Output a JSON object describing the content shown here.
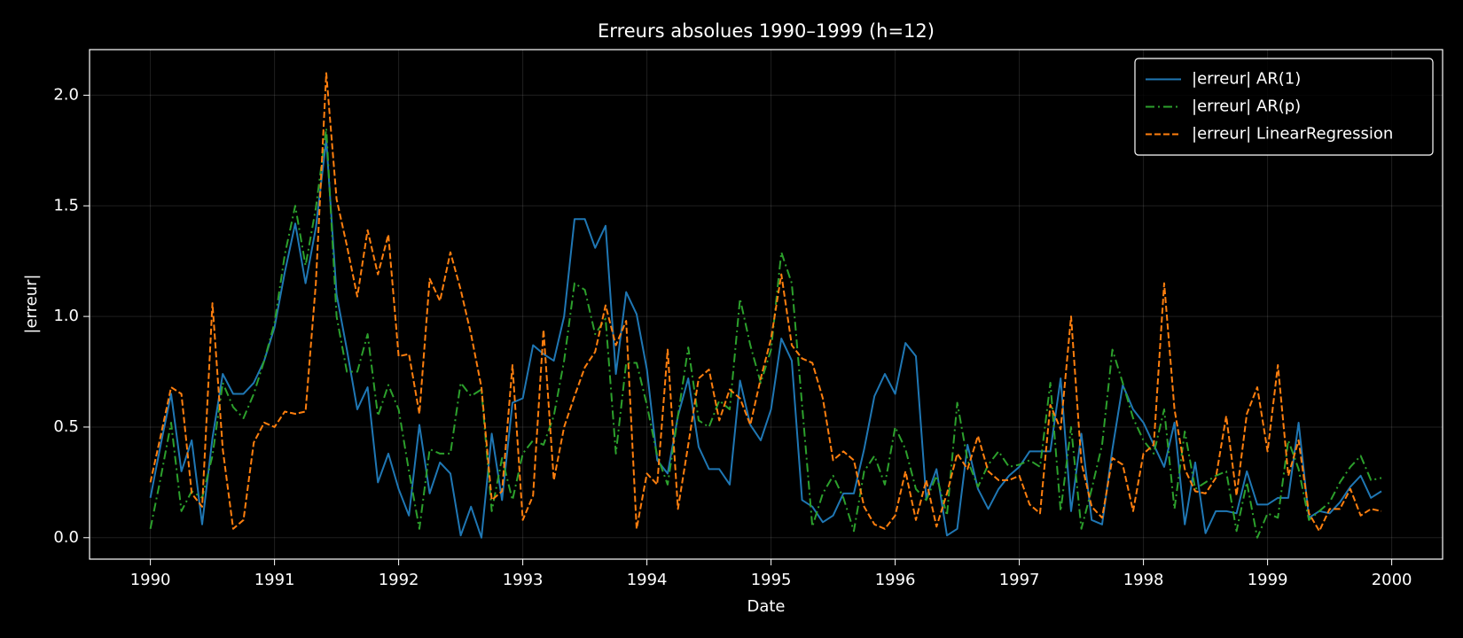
{
  "chart_data": {
    "type": "line",
    "title": "Erreurs absolues 1990–1999 (h=12)",
    "x_label": "Date",
    "y_label": "|erreur|",
    "x": [
      1990,
      1990.083,
      1990.167,
      1990.25,
      1990.333,
      1990.417,
      1990.5,
      1990.583,
      1990.667,
      1990.75,
      1990.833,
      1990.917,
      1991,
      1991.083,
      1991.167,
      1991.25,
      1991.333,
      1991.417,
      1991.5,
      1991.583,
      1991.667,
      1991.75,
      1991.833,
      1991.917,
      1992,
      1992.083,
      1992.167,
      1992.25,
      1992.333,
      1992.417,
      1992.5,
      1992.583,
      1992.667,
      1992.75,
      1992.833,
      1992.917,
      1993,
      1993.083,
      1993.167,
      1993.25,
      1993.333,
      1993.417,
      1993.5,
      1993.583,
      1993.667,
      1993.75,
      1993.833,
      1993.917,
      1994,
      1994.083,
      1994.167,
      1994.25,
      1994.333,
      1994.417,
      1994.5,
      1994.583,
      1994.667,
      1994.75,
      1994.833,
      1994.917,
      1995,
      1995.083,
      1995.167,
      1995.25,
      1995.333,
      1995.417,
      1995.5,
      1995.583,
      1995.667,
      1995.75,
      1995.833,
      1995.917,
      1996,
      1996.083,
      1996.167,
      1996.25,
      1996.333,
      1996.417,
      1996.5,
      1996.583,
      1996.667,
      1996.75,
      1996.833,
      1996.917,
      1997,
      1997.083,
      1997.167,
      1997.25,
      1997.333,
      1997.417,
      1997.5,
      1997.583,
      1997.667,
      1997.75,
      1997.833,
      1997.917,
      1998,
      1998.083,
      1998.167,
      1998.25,
      1998.333,
      1998.417,
      1998.5,
      1998.583,
      1998.667,
      1998.75,
      1998.833,
      1998.917,
      1999,
      1999.083,
      1999.167,
      1999.25,
      1999.333,
      1999.417,
      1999.5,
      1999.583,
      1999.667,
      1999.75,
      1999.833,
      1999.917
    ],
    "series": [
      {
        "name": "|erreur| AR(1)",
        "color": "#1f77b4",
        "dash": "solid",
        "values": [
          0.18,
          0.42,
          0.65,
          0.3,
          0.44,
          0.06,
          0.45,
          0.74,
          0.65,
          0.65,
          0.7,
          0.8,
          0.95,
          1.2,
          1.42,
          1.15,
          1.4,
          1.8,
          1.1,
          0.85,
          0.58,
          0.68,
          0.25,
          0.38,
          0.22,
          0.1,
          0.51,
          0.2,
          0.34,
          0.29,
          0.01,
          0.14,
          0.0,
          0.47,
          0.17,
          0.61,
          0.63,
          0.87,
          0.83,
          0.8,
          1.0,
          1.44,
          1.44,
          1.31,
          1.41,
          0.74,
          1.11,
          1.01,
          0.76,
          0.35,
          0.29,
          0.55,
          0.72,
          0.41,
          0.31,
          0.31,
          0.24,
          0.71,
          0.51,
          0.44,
          0.58,
          0.9,
          0.8,
          0.17,
          0.14,
          0.07,
          0.1,
          0.2,
          0.2,
          0.4,
          0.64,
          0.74,
          0.65,
          0.88,
          0.82,
          0.18,
          0.31,
          0.01,
          0.04,
          0.42,
          0.22,
          0.13,
          0.22,
          0.28,
          0.32,
          0.39,
          0.39,
          0.39,
          0.72,
          0.12,
          0.47,
          0.08,
          0.06,
          0.4,
          0.69,
          0.58,
          0.52,
          0.42,
          0.32,
          0.52,
          0.06,
          0.34,
          0.02,
          0.12,
          0.12,
          0.11,
          0.3,
          0.15,
          0.15,
          0.18,
          0.18,
          0.52,
          0.09,
          0.12,
          0.11,
          0.16,
          0.23,
          0.28,
          0.18,
          0.21
        ]
      },
      {
        "name": "|erreur| AR(p)",
        "color": "#2ca02c",
        "dash": "dashdot",
        "values": [
          0.04,
          0.27,
          0.52,
          0.12,
          0.21,
          0.18,
          0.37,
          0.7,
          0.59,
          0.54,
          0.65,
          0.8,
          0.97,
          1.28,
          1.5,
          1.23,
          1.49,
          1.85,
          1.0,
          0.75,
          0.75,
          0.92,
          0.55,
          0.69,
          0.58,
          0.3,
          0.04,
          0.4,
          0.38,
          0.38,
          0.7,
          0.64,
          0.67,
          0.12,
          0.36,
          0.17,
          0.38,
          0.44,
          0.42,
          0.55,
          0.8,
          1.15,
          1.12,
          0.92,
          0.99,
          0.38,
          0.79,
          0.79,
          0.6,
          0.37,
          0.24,
          0.55,
          0.86,
          0.53,
          0.5,
          0.62,
          0.58,
          1.08,
          0.87,
          0.7,
          0.85,
          1.29,
          1.15,
          0.6,
          0.05,
          0.2,
          0.28,
          0.18,
          0.03,
          0.3,
          0.37,
          0.24,
          0.5,
          0.4,
          0.22,
          0.17,
          0.28,
          0.1,
          0.61,
          0.35,
          0.23,
          0.33,
          0.39,
          0.32,
          0.33,
          0.35,
          0.32,
          0.7,
          0.12,
          0.5,
          0.04,
          0.22,
          0.42,
          0.85,
          0.7,
          0.54,
          0.44,
          0.38,
          0.58,
          0.13,
          0.48,
          0.22,
          0.25,
          0.28,
          0.3,
          0.03,
          0.25,
          0.0,
          0.11,
          0.09,
          0.44,
          0.31,
          0.08,
          0.12,
          0.16,
          0.25,
          0.32,
          0.37,
          0.26,
          0.27
        ]
      },
      {
        "name": "|erreur| LinearRegression",
        "color": "#ff7f0e",
        "dash": "dashed",
        "values": [
          0.25,
          0.46,
          0.68,
          0.65,
          0.2,
          0.14,
          1.06,
          0.4,
          0.04,
          0.08,
          0.43,
          0.52,
          0.5,
          0.57,
          0.56,
          0.57,
          1.15,
          2.1,
          1.53,
          1.32,
          1.09,
          1.39,
          1.19,
          1.37,
          0.82,
          0.83,
          0.56,
          1.17,
          1.07,
          1.29,
          1.12,
          0.92,
          0.68,
          0.17,
          0.21,
          0.78,
          0.08,
          0.19,
          0.94,
          0.26,
          0.5,
          0.64,
          0.77,
          0.84,
          1.05,
          0.87,
          0.98,
          0.04,
          0.29,
          0.24,
          0.85,
          0.13,
          0.42,
          0.72,
          0.76,
          0.53,
          0.67,
          0.63,
          0.51,
          0.72,
          0.9,
          1.19,
          0.87,
          0.81,
          0.79,
          0.63,
          0.35,
          0.39,
          0.35,
          0.14,
          0.06,
          0.04,
          0.1,
          0.3,
          0.08,
          0.26,
          0.05,
          0.2,
          0.38,
          0.31,
          0.46,
          0.3,
          0.26,
          0.26,
          0.28,
          0.15,
          0.11,
          0.6,
          0.49,
          1.0,
          0.34,
          0.14,
          0.09,
          0.36,
          0.33,
          0.12,
          0.38,
          0.42,
          1.15,
          0.58,
          0.31,
          0.21,
          0.2,
          0.27,
          0.55,
          0.19,
          0.56,
          0.68,
          0.39,
          0.78,
          0.28,
          0.44,
          0.11,
          0.03,
          0.13,
          0.13,
          0.22,
          0.1,
          0.13,
          0.12
        ]
      }
    ],
    "xlim": [
      1989.51,
      2000.41
    ],
    "xticks": [
      1990,
      1991,
      1992,
      1993,
      1994,
      1995,
      1996,
      1997,
      1998,
      1999,
      2000
    ],
    "ylim": [
      -0.097,
      2.206
    ],
    "yticks": [
      {
        "value": 0,
        "label": "0.0"
      },
      0.5,
      {
        "value": 1,
        "label": "1.0"
      },
      1.5,
      {
        "value": 2,
        "label": "2.0"
      }
    ],
    "grid": true,
    "legend": "upper right",
    "background": "#000000"
  }
}
